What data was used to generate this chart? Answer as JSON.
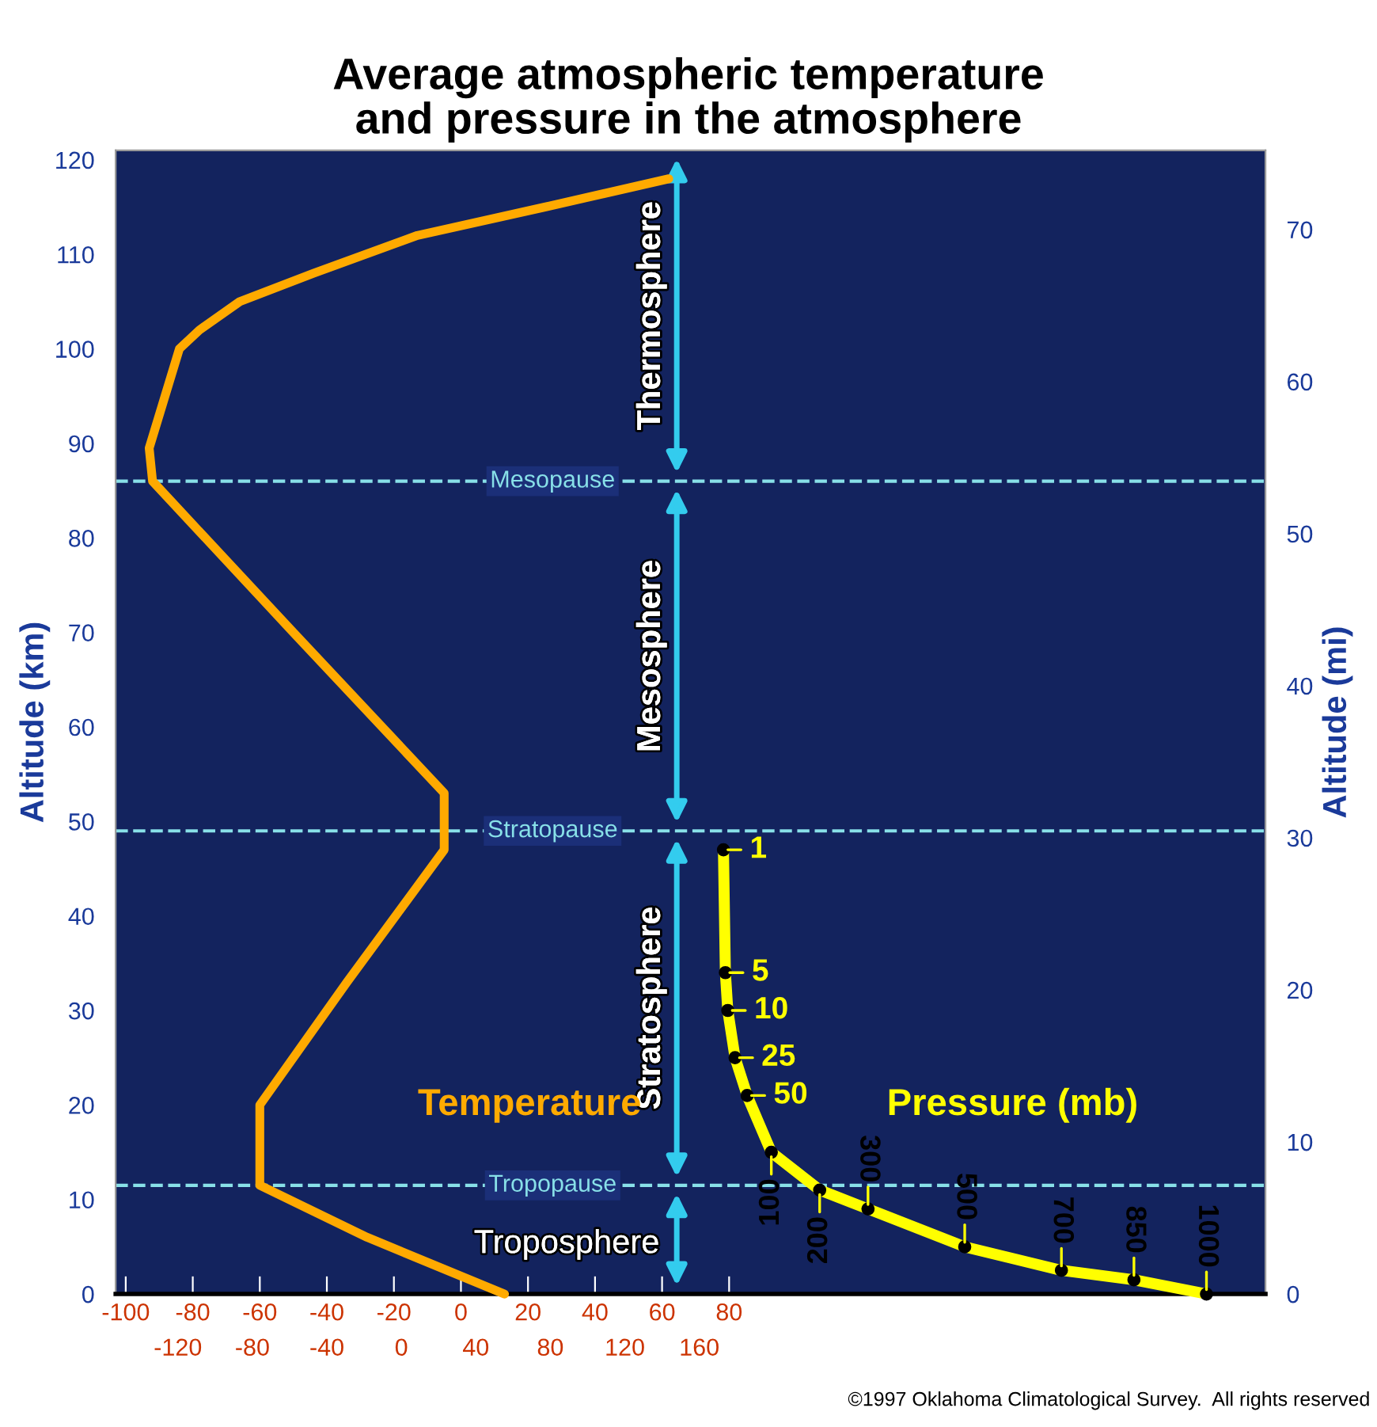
{
  "chart_data": [
    {
      "type": "line",
      "title": "Average atmospheric temperature\nand pressure in the atmosphere",
      "ylabel": "Altitude (km)",
      "y2label": "Altitude (mi)",
      "xlim": [
        -103,
        240
      ],
      "xticks": [
        -100,
        -80,
        -60,
        -40,
        -20,
        0,
        20,
        40,
        60,
        80
      ],
      "x2lim": [
        -153.4,
        464
      ],
      "x2ticks": [
        -120,
        -80,
        -40,
        0,
        40,
        80,
        120,
        160
      ],
      "ylim": [
        0,
        121
      ],
      "yticks": [
        0,
        10,
        20,
        30,
        40,
        50,
        60,
        70,
        80,
        90,
        100,
        110,
        120
      ],
      "y2lim": [
        0,
        75.2
      ],
      "y2ticks": [
        0,
        10,
        20,
        30,
        40,
        50,
        60,
        70
      ],
      "grid": false,
      "legend": false,
      "series": [
        {
          "name": "Temperature",
          "color": "#ffaa00",
          "marker": "none",
          "x": [
            13,
            -28,
            -60,
            -60,
            -34,
            -5,
            -5,
            -50,
            -92,
            -93,
            -84,
            -78,
            -66,
            -44,
            -13,
            25,
            62
          ],
          "values": [
            0,
            6,
            11.5,
            20,
            33,
            47,
            53,
            70,
            86,
            89.5,
            100,
            102,
            105,
            108,
            112,
            115,
            118
          ]
        }
      ],
      "ref_lines": [
        {
          "axis": "y",
          "value": 11.5,
          "label": "Tropopause",
          "color": "#88e0e8",
          "line_style": "dashed"
        },
        {
          "axis": "y",
          "value": 49,
          "label": "Stratopause",
          "color": "#88e0e8",
          "line_style": "dashed"
        },
        {
          "axis": "y",
          "value": 86,
          "label": "Mesopause",
          "color": "#88e0e8",
          "line_style": "dashed"
        }
      ],
      "annotations": [
        "Troposphere",
        "Stratosphere",
        "Mesosphere",
        "Thermosphere",
        "©1997 Oklahoma Climatological Survey.  All rights reserved"
      ]
    },
    {
      "type": "line",
      "orientation": "horizontal",
      "xlim": [
        -1256,
        1122
      ],
      "ylim": [
        0,
        121
      ],
      "tick_labels": false,
      "legend": false,
      "data_labels": true,
      "series": [
        {
          "name": "Pressure (mb)",
          "color": "#ffff00",
          "marker": "circle",
          "x": [
            47,
            34,
            30,
            25,
            21,
            15,
            11,
            9,
            5,
            2.5,
            1.5,
            0
          ],
          "values": [
            1,
            5,
            10,
            25,
            50,
            100,
            200,
            300,
            500,
            700,
            850,
            1000
          ]
        }
      ]
    }
  ]
}
